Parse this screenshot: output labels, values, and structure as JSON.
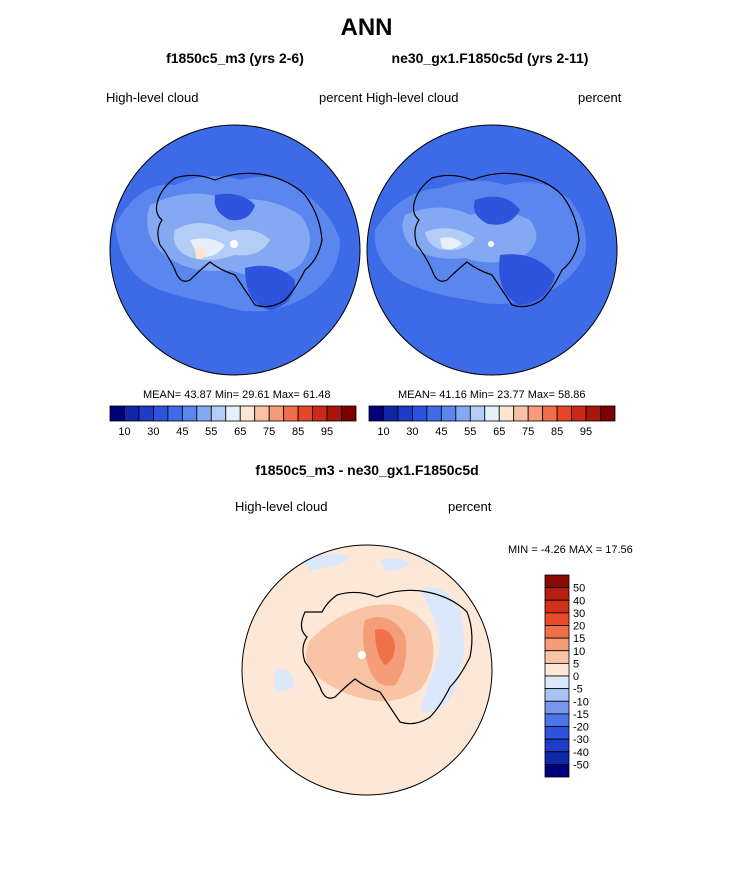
{
  "main_title": "ANN",
  "panels": [
    {
      "title": "f1850c5_m3 (yrs 2-6)",
      "left_label": "High-level cloud",
      "right_label": "percent",
      "stats": {
        "mean_label": "MEAN=",
        "mean": "43.87",
        "min_label": "Min=",
        "min": "29.61",
        "max_label": "Max=",
        "max": "61.48"
      }
    },
    {
      "title": "ne30_gx1.F1850c5d (yrs 2-11)",
      "left_label": "High-level cloud",
      "right_label": "percent",
      "stats": {
        "mean_label": "MEAN=",
        "mean": "41.16",
        "min_label": "Min=",
        "min": "23.77",
        "max_label": "Max=",
        "max": "58.86"
      }
    },
    {
      "title": "f1850c5_m3 - ne30_gx1.F1850c5d",
      "left_label": "High-level cloud",
      "right_label": "percent",
      "stats": {
        "min_label": "MIN =",
        "min": "-4.26",
        "max_label": "MAX =",
        "max": "17.56"
      }
    }
  ],
  "colorbar_abs": {
    "colors": [
      "#00007d",
      "#0f26a6",
      "#1e3cc7",
      "#2e54dd",
      "#3f6ce6",
      "#5a86ee",
      "#84a9f2",
      "#b4cdf7",
      "#e6f0fb",
      "#fde5d3",
      "#f9c2a4",
      "#f59b78",
      "#f06e48",
      "#e6472b",
      "#cc2a18",
      "#a8160c",
      "#7d0000"
    ],
    "tick_labels": [
      "10",
      "30",
      "45",
      "55",
      "65",
      "75",
      "85",
      "95"
    ]
  },
  "colorbar_diff": {
    "colors": [
      "#00007d",
      "#0f26a6",
      "#1e3cc7",
      "#2e54dd",
      "#4b74e6",
      "#7797ef",
      "#a9c3f5",
      "#dbe8fb",
      "#fde7d6",
      "#f9c4a6",
      "#f59c78",
      "#f07149",
      "#e84a2c",
      "#d2301a",
      "#b51d0e",
      "#8a0a03"
    ],
    "tick_labels": [
      "50",
      "40",
      "30",
      "20",
      "15",
      "10",
      "5",
      "0",
      "-5",
      "-10",
      "-15",
      "-20",
      "-30",
      "-40",
      "-50"
    ]
  },
  "map_colors": {
    "base_blue": "#3d6ae6",
    "mid_blue": "#5a86ee",
    "light_blue": "#84a9f2",
    "pale_blue": "#b4cdf7",
    "whitish": "#e6f0fb",
    "dark_blue": "#2e54dd",
    "diff_base": "#fde7d6",
    "diff_light": "#f9c4a6",
    "diff_mid": "#f59c78",
    "diff_blue": "#dbe8fb"
  }
}
